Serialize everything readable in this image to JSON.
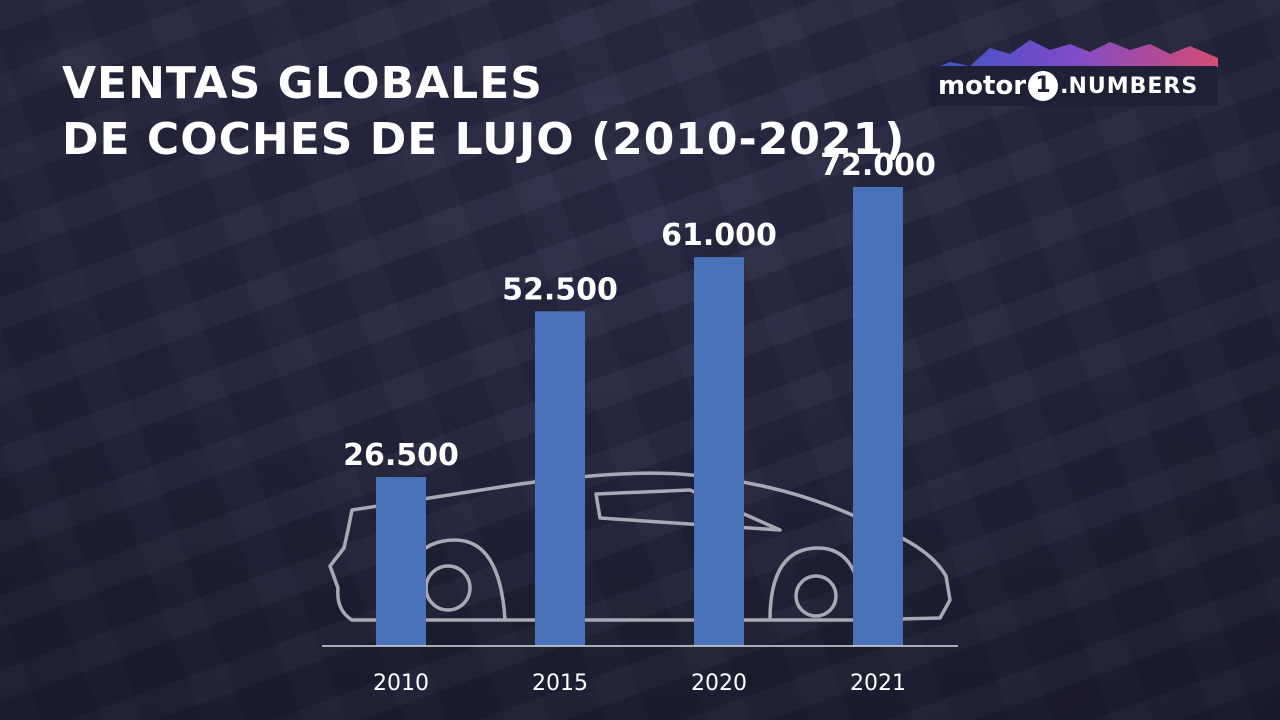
{
  "title": {
    "line1": "VENTAS GLOBALES",
    "line2": "DE COCHES DE LUJO (2010-2021)"
  },
  "logo": {
    "motor": "motor",
    "one": "1",
    "dot": ".",
    "numbers": "NUMBERS"
  },
  "colors": {
    "bar": "#4a72b8",
    "axis": "#d9d9d9",
    "car_outline": "#a9a9b4"
  },
  "chart_data": {
    "type": "bar",
    "categories": [
      "2010",
      "2015",
      "2020",
      "2021"
    ],
    "values": [
      26500,
      52500,
      61000,
      72000
    ],
    "data_labels": [
      "26.500",
      "52.500",
      "61.000",
      "72.000"
    ],
    "title": "VENTAS GLOBALES DE COCHES DE LUJO (2010-2021)",
    "xlabel": "",
    "ylabel": "",
    "ylim": [
      0,
      80000
    ],
    "grid": false,
    "legend": "none"
  }
}
